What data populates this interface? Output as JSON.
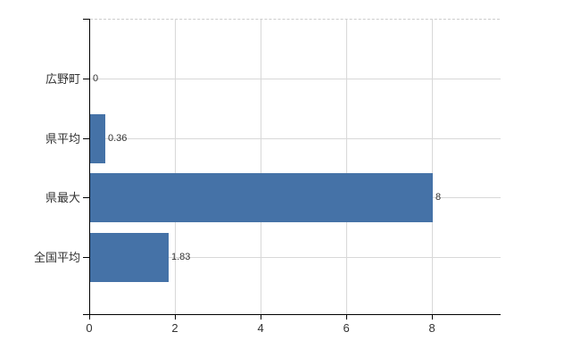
{
  "chart_data": {
    "type": "bar",
    "orientation": "horizontal",
    "title": "",
    "xlabel": "",
    "ylabel": "",
    "categories": [
      "広野町",
      "県平均",
      "県最大",
      "全国平均"
    ],
    "values": [
      0,
      0.36,
      8,
      1.83
    ],
    "value_labels": [
      "0",
      "0.36",
      "8",
      "1.83"
    ],
    "x_ticks": [
      0,
      2,
      4,
      6,
      8
    ],
    "xlim": [
      0,
      9.58
    ],
    "grid": true,
    "legend": false,
    "colors": {
      "bar": "#4572a7",
      "grid": "#d8d8d8",
      "axis": "#000000",
      "plot_top_border": "#cccccc",
      "text": "#333333"
    }
  }
}
